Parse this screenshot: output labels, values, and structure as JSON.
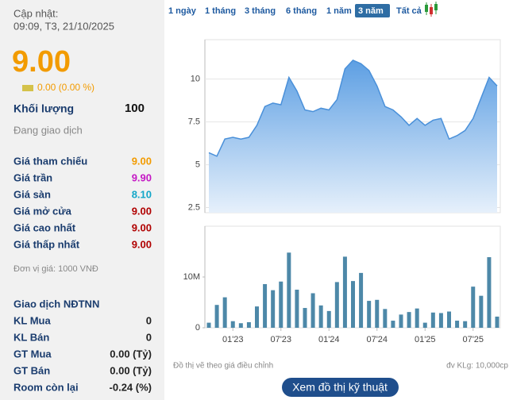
{
  "panel": {
    "updated_label": "Cập nhật:",
    "updated_time": "09:09, T3, 21/10/2025",
    "price": "9.00",
    "change": "0.00 (0.00 %)",
    "volume_label": "Khối lượng",
    "volume": "100",
    "status": "Đang giao dịch",
    "rows": [
      {
        "label": "Giá tham chiếu",
        "value": "9.00",
        "color": "#f29b00"
      },
      {
        "label": "Giá trần",
        "value": "9.90",
        "color": "#c418c4"
      },
      {
        "label": "Giá sàn",
        "value": "8.10",
        "color": "#12a6c8"
      },
      {
        "label": "Giá mở cửa",
        "value": "9.00",
        "color": "#b00000"
      },
      {
        "label": "Giá cao nhất",
        "value": "9.00",
        "color": "#b00000"
      },
      {
        "label": "Giá thấp nhất",
        "value": "9.00",
        "color": "#b00000"
      }
    ],
    "unit_note": "Đơn vị giá: 1000 VNĐ",
    "foreign_title": "Giao dịch NĐTNN",
    "foreign_rows": [
      {
        "label": "KL Mua",
        "value": "0",
        "color": "#222222"
      },
      {
        "label": "KL Bán",
        "value": "0",
        "color": "#222222"
      },
      {
        "label": "GT Mua",
        "value": "0.00 (Tỷ)",
        "color": "#222222"
      },
      {
        "label": "GT Bán",
        "value": "0.00 (Tỷ)",
        "color": "#222222"
      },
      {
        "label": "Room còn lại",
        "value": "-0.24 (%)",
        "color": "#222222"
      }
    ]
  },
  "tabs": {
    "items": [
      "1 ngày",
      "1 tháng",
      "3 tháng",
      "6 tháng",
      "1 năm",
      "3 năm",
      "Tất cả"
    ],
    "active": 5
  },
  "footer": {
    "note": "Đồ thị vẽ theo giá điều chỉnh",
    "unit": "đv KLg: 10,000cp",
    "button": "Xem đồ thị kỹ thuật"
  },
  "chart_data": [
    {
      "type": "area",
      "color": "#4a90d9",
      "grid": true,
      "values": [
        5.7,
        5.5,
        6.5,
        6.6,
        6.5,
        6.6,
        7.3,
        8.4,
        8.6,
        8.5,
        10.1,
        9.3,
        8.2,
        8.1,
        8.3,
        8.2,
        8.8,
        10.6,
        11.1,
        10.9,
        10.5,
        9.6,
        8.4,
        8.2,
        7.8,
        7.3,
        7.7,
        7.3,
        7.6,
        7.7,
        6.5,
        6.7,
        7.0,
        7.7,
        8.9,
        10.1,
        9.6
      ],
      "ylim": [
        2.2,
        12.3
      ],
      "yticks": [
        2.5,
        5,
        7.5,
        10
      ]
    },
    {
      "type": "bar",
      "color": "#4d88a8",
      "grid": false,
      "categories": [
        null,
        null,
        null,
        "01'23",
        null,
        null,
        null,
        null,
        null,
        "07'23",
        null,
        null,
        null,
        null,
        null,
        "01'24",
        null,
        null,
        null,
        null,
        null,
        "07'24",
        null,
        null,
        null,
        null,
        null,
        "01'25",
        null,
        null,
        null,
        null,
        null,
        "07'25",
        null,
        null,
        null
      ],
      "values": [
        1000000,
        4500000,
        6000000,
        1300000,
        900000,
        1100000,
        4200000,
        8600000,
        7400000,
        9100000,
        14800000,
        7500000,
        3900000,
        6800000,
        4400000,
        3300000,
        9000000,
        14000000,
        9200000,
        10800000,
        5300000,
        5500000,
        3700000,
        1400000,
        2600000,
        3100000,
        3800000,
        1000000,
        3000000,
        2900000,
        3200000,
        1400000,
        1300000,
        8100000,
        6300000,
        13900000,
        2200000
      ],
      "ylim": [
        0,
        20000000
      ],
      "yticks": [
        0,
        {
          "value": 10000000,
          "label": "10M"
        }
      ]
    }
  ]
}
